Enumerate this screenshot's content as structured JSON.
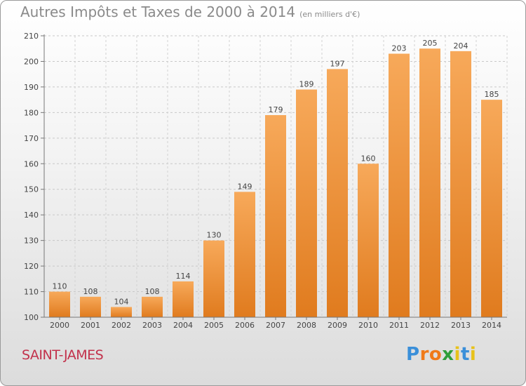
{
  "header": {
    "title": "Autres Impôts et Taxes de 2000 à 2014",
    "subtitle": "(en milliers d'€)"
  },
  "footer": {
    "place": "SAINT-JAMES",
    "brand": {
      "letters": [
        "P",
        "r",
        "o",
        "x",
        "i",
        "t",
        "i"
      ],
      "colors": [
        "#3a8fd9",
        "#f07a1a",
        "#f07a1a",
        "#2f9e3a",
        "#e8c21a",
        "#3a8fd9",
        "#e8c21a"
      ]
    }
  },
  "chart_data": {
    "type": "bar",
    "title": "Autres Impôts et Taxes de 2000 à 2014",
    "subtitle": "(en milliers d'€)",
    "categories": [
      "2000",
      "2001",
      "2002",
      "2003",
      "2004",
      "2005",
      "2006",
      "2007",
      "2008",
      "2009",
      "2010",
      "2011",
      "2012",
      "2013",
      "2014"
    ],
    "values": [
      110,
      108,
      104,
      108,
      114,
      130,
      149,
      179,
      189,
      197,
      160,
      203,
      205,
      204,
      185
    ],
    "ylim": [
      100,
      210
    ],
    "yticks": [
      100,
      110,
      120,
      130,
      140,
      150,
      160,
      170,
      180,
      190,
      200,
      210
    ],
    "grid": true,
    "bar_color_top": "#f7a95a",
    "bar_color_bottom": "#e07b1e"
  }
}
